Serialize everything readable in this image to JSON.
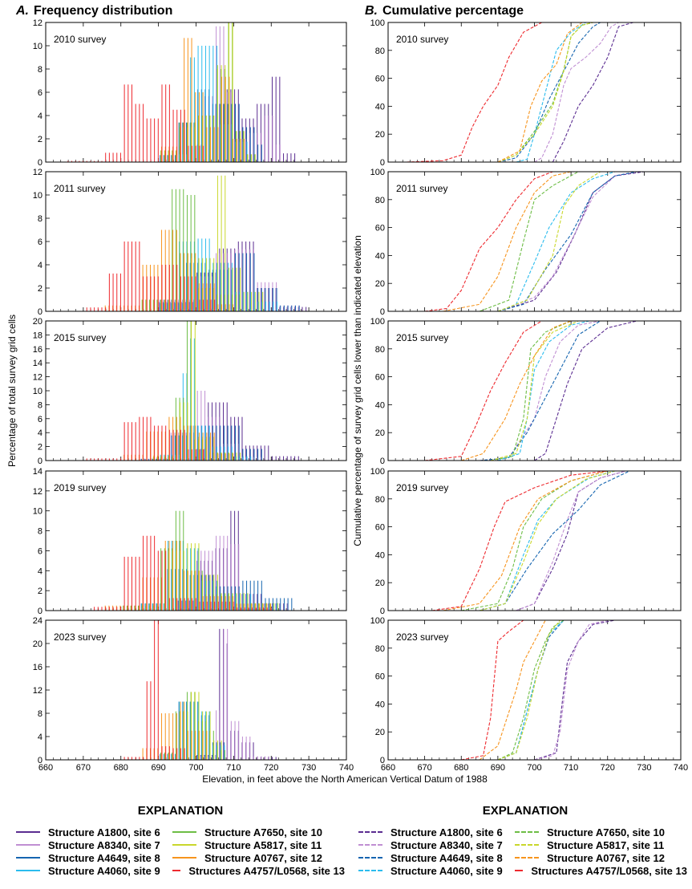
{
  "chart_data": [
    {
      "type": "bar",
      "title": "A.  Frequency distribution",
      "panel_letter": "A.",
      "panel_title": "Frequency distribution",
      "ylabel": "Percentage of total survey grid cells",
      "xlim": [
        660,
        740
      ],
      "xticks": [
        660,
        670,
        680,
        690,
        700,
        710,
        720,
        730,
        740
      ],
      "bin_width_ft": 1,
      "ylims": {
        "2010 survey": 12,
        "2011 survey": 12,
        "2015 survey": 20,
        "2019 survey": 14,
        "2023 survey": 24
      },
      "yticks": {
        "2010 survey": [
          0,
          2,
          4,
          6,
          8,
          10,
          12
        ],
        "2011 survey": [
          0,
          2,
          4,
          6,
          8,
          10,
          12
        ],
        "2015 survey": [
          0,
          2,
          4,
          6,
          8,
          10,
          12,
          14,
          16,
          18,
          20
        ],
        "2019 survey": [
          0,
          2,
          4,
          6,
          8,
          10,
          12,
          14
        ],
        "2023 survey": [
          0,
          4,
          8,
          12,
          16,
          20,
          24
        ]
      }
    },
    {
      "type": "line",
      "title": "B.  Cumulative percentage",
      "panel_letter": "B.",
      "panel_title": "Cumulative percentage",
      "ylabel": "Cumulative percentage of survey grid cells lower than indicated elevation",
      "xlim": [
        660,
        740
      ],
      "ylim": [
        0,
        100
      ],
      "xticks": [
        660,
        670,
        680,
        690,
        700,
        710,
        720,
        730,
        740
      ],
      "yticks": [
        0,
        20,
        40,
        60,
        80,
        100
      ],
      "line_style": "dashed"
    }
  ],
  "xlabel": "Elevation, in feet above the North American Vertical Datum of 1988",
  "legend": {
    "title": "EXPLANATION"
  },
  "series": [
    {
      "name": "Structure A1800, site 6",
      "color": "#5b2d91"
    },
    {
      "name": "Structure A8340, site 7",
      "color": "#c08fd3"
    },
    {
      "name": "Structure A4649, site 8",
      "color": "#1565b0"
    },
    {
      "name": "Structure A4060, site 9",
      "color": "#2bbcee"
    },
    {
      "name": "Structure A7650, site 10",
      "color": "#6dbd45"
    },
    {
      "name": "Structure A5817, site 11",
      "color": "#c9d72b"
    },
    {
      "name": "Structure A0767, site 12",
      "color": "#f7941d"
    },
    {
      "name": "Structures A4757/L0568, site 13",
      "color": "#ee2a2f"
    }
  ],
  "surveys": [
    {
      "label": "2010 survey",
      "cumulative": [
        [
          [
            705,
            0
          ],
          [
            708,
            15
          ],
          [
            712,
            40
          ],
          [
            716,
            55
          ],
          [
            720,
            75
          ],
          [
            723,
            97
          ],
          [
            727,
            100
          ]
        ],
        [
          [
            700,
            0
          ],
          [
            702,
            3
          ],
          [
            705,
            20
          ],
          [
            708,
            55
          ],
          [
            710,
            67
          ],
          [
            714,
            75
          ],
          [
            718,
            85
          ],
          [
            721,
            97
          ],
          [
            723,
            100
          ]
        ],
        [
          [
            690,
            0
          ],
          [
            695,
            3
          ],
          [
            700,
            20
          ],
          [
            704,
            45
          ],
          [
            708,
            65
          ],
          [
            712,
            85
          ],
          [
            716,
            97
          ],
          [
            718,
            100
          ]
        ],
        [
          [
            695,
            0
          ],
          [
            698,
            2
          ],
          [
            700,
            20
          ],
          [
            703,
            50
          ],
          [
            706,
            80
          ],
          [
            710,
            93
          ],
          [
            714,
            100
          ]
        ],
        [
          [
            690,
            0
          ],
          [
            695,
            5
          ],
          [
            700,
            22
          ],
          [
            705,
            42
          ],
          [
            708,
            66
          ],
          [
            710,
            90
          ],
          [
            713,
            98
          ],
          [
            716,
            100
          ]
        ],
        [
          [
            690,
            0
          ],
          [
            695,
            5
          ],
          [
            700,
            20
          ],
          [
            705,
            40
          ],
          [
            708,
            65
          ],
          [
            710,
            90
          ],
          [
            713,
            98
          ],
          [
            716,
            100
          ]
        ],
        [
          [
            690,
            0
          ],
          [
            696,
            8
          ],
          [
            699,
            40
          ],
          [
            702,
            58
          ],
          [
            706,
            70
          ],
          [
            709,
            92
          ],
          [
            713,
            100
          ]
        ],
        [
          [
            665,
            0
          ],
          [
            675,
            1
          ],
          [
            680,
            5
          ],
          [
            683,
            25
          ],
          [
            686,
            40
          ],
          [
            690,
            55
          ],
          [
            693,
            75
          ],
          [
            697,
            93
          ],
          [
            702,
            100
          ]
        ]
      ]
    },
    {
      "label": "2011 survey",
      "cumulative": [
        [
          [
            690,
            0
          ],
          [
            700,
            8
          ],
          [
            706,
            28
          ],
          [
            711,
            55
          ],
          [
            716,
            85
          ],
          [
            722,
            97
          ],
          [
            730,
            100
          ]
        ],
        [
          [
            690,
            0
          ],
          [
            700,
            10
          ],
          [
            705,
            25
          ],
          [
            710,
            50
          ],
          [
            716,
            82
          ],
          [
            722,
            97
          ],
          [
            728,
            100
          ]
        ],
        [
          [
            690,
            0
          ],
          [
            697,
            5
          ],
          [
            703,
            30
          ],
          [
            710,
            55
          ],
          [
            716,
            85
          ],
          [
            722,
            97
          ],
          [
            728,
            100
          ]
        ],
        [
          [
            690,
            0
          ],
          [
            695,
            5
          ],
          [
            700,
            35
          ],
          [
            704,
            60
          ],
          [
            710,
            85
          ],
          [
            716,
            95
          ],
          [
            722,
            100
          ]
        ],
        [
          [
            685,
            0
          ],
          [
            693,
            8
          ],
          [
            697,
            50
          ],
          [
            700,
            80
          ],
          [
            705,
            90
          ],
          [
            712,
            100
          ]
        ],
        [
          [
            690,
            0
          ],
          [
            698,
            8
          ],
          [
            705,
            40
          ],
          [
            708,
            75
          ],
          [
            712,
            90
          ],
          [
            718,
            100
          ]
        ],
        [
          [
            675,
            0
          ],
          [
            685,
            5
          ],
          [
            690,
            25
          ],
          [
            695,
            60
          ],
          [
            700,
            85
          ],
          [
            705,
            97
          ],
          [
            710,
            100
          ]
        ],
        [
          [
            670,
            0
          ],
          [
            676,
            2
          ],
          [
            680,
            15
          ],
          [
            685,
            45
          ],
          [
            690,
            60
          ],
          [
            695,
            80
          ],
          [
            700,
            95
          ],
          [
            705,
            100
          ]
        ]
      ]
    },
    {
      "label": "2015 survey",
      "cumulative": [
        [
          [
            700,
            0
          ],
          [
            703,
            5
          ],
          [
            706,
            30
          ],
          [
            709,
            55
          ],
          [
            713,
            80
          ],
          [
            720,
            95
          ],
          [
            728,
            100
          ]
        ],
        [
          [
            685,
            0
          ],
          [
            693,
            2
          ],
          [
            700,
            30
          ],
          [
            703,
            60
          ],
          [
            707,
            85
          ],
          [
            712,
            97
          ],
          [
            718,
            100
          ]
        ],
        [
          [
            685,
            0
          ],
          [
            693,
            2
          ],
          [
            698,
            20
          ],
          [
            703,
            45
          ],
          [
            708,
            70
          ],
          [
            712,
            90
          ],
          [
            718,
            100
          ]
        ],
        [
          [
            690,
            0
          ],
          [
            696,
            5
          ],
          [
            698,
            30
          ],
          [
            700,
            65
          ],
          [
            704,
            85
          ],
          [
            710,
            97
          ],
          [
            715,
            100
          ]
        ],
        [
          [
            688,
            0
          ],
          [
            694,
            3
          ],
          [
            697,
            30
          ],
          [
            699,
            80
          ],
          [
            703,
            92
          ],
          [
            710,
            100
          ]
        ],
        [
          [
            688,
            0
          ],
          [
            695,
            5
          ],
          [
            698,
            30
          ],
          [
            700,
            75
          ],
          [
            705,
            92
          ],
          [
            712,
            100
          ]
        ],
        [
          [
            680,
            0
          ],
          [
            686,
            5
          ],
          [
            692,
            30
          ],
          [
            696,
            55
          ],
          [
            700,
            75
          ],
          [
            705,
            95
          ],
          [
            710,
            100
          ]
        ],
        [
          [
            670,
            0
          ],
          [
            680,
            3
          ],
          [
            684,
            25
          ],
          [
            688,
            50
          ],
          [
            692,
            70
          ],
          [
            697,
            92
          ],
          [
            702,
            100
          ]
        ]
      ]
    },
    {
      "label": "2019 survey",
      "cumulative": [
        [
          [
            695,
            0
          ],
          [
            700,
            5
          ],
          [
            705,
            30
          ],
          [
            709,
            55
          ],
          [
            712,
            85
          ],
          [
            718,
            95
          ],
          [
            725,
            100
          ]
        ],
        [
          [
            695,
            0
          ],
          [
            700,
            5
          ],
          [
            705,
            35
          ],
          [
            709,
            65
          ],
          [
            712,
            85
          ],
          [
            718,
            95
          ],
          [
            725,
            100
          ]
        ],
        [
          [
            685,
            0
          ],
          [
            692,
            5
          ],
          [
            698,
            30
          ],
          [
            705,
            55
          ],
          [
            712,
            72
          ],
          [
            718,
            90
          ],
          [
            726,
            100
          ]
        ],
        [
          [
            685,
            0
          ],
          [
            692,
            5
          ],
          [
            697,
            40
          ],
          [
            701,
            65
          ],
          [
            706,
            80
          ],
          [
            715,
            95
          ],
          [
            722,
            100
          ]
        ],
        [
          [
            680,
            0
          ],
          [
            690,
            5
          ],
          [
            694,
            30
          ],
          [
            697,
            60
          ],
          [
            702,
            80
          ],
          [
            710,
            93
          ],
          [
            720,
            100
          ]
        ],
        [
          [
            685,
            0
          ],
          [
            692,
            5
          ],
          [
            697,
            35
          ],
          [
            701,
            62
          ],
          [
            706,
            80
          ],
          [
            714,
            94
          ],
          [
            722,
            100
          ]
        ],
        [
          [
            675,
            0
          ],
          [
            685,
            5
          ],
          [
            691,
            25
          ],
          [
            696,
            60
          ],
          [
            701,
            80
          ],
          [
            710,
            93
          ],
          [
            720,
            100
          ]
        ],
        [
          [
            672,
            0
          ],
          [
            680,
            3
          ],
          [
            685,
            30
          ],
          [
            689,
            60
          ],
          [
            692,
            78
          ],
          [
            700,
            88
          ],
          [
            710,
            97
          ],
          [
            720,
            100
          ]
        ]
      ]
    },
    {
      "label": "2023 survey",
      "cumulative": [
        [
          [
            700,
            0
          ],
          [
            706,
            5
          ],
          [
            708,
            50
          ],
          [
            709,
            70
          ],
          [
            712,
            85
          ],
          [
            716,
            97
          ],
          [
            722,
            100
          ]
        ],
        [
          [
            700,
            0
          ],
          [
            705,
            3
          ],
          [
            707,
            20
          ],
          [
            709,
            65
          ],
          [
            712,
            85
          ],
          [
            715,
            97
          ],
          [
            720,
            100
          ]
        ],
        [
          [
            690,
            0
          ],
          [
            695,
            5
          ],
          [
            698,
            35
          ],
          [
            701,
            65
          ],
          [
            704,
            88
          ],
          [
            708,
            100
          ]
        ],
        [
          [
            690,
            0
          ],
          [
            695,
            5
          ],
          [
            698,
            35
          ],
          [
            701,
            65
          ],
          [
            704,
            90
          ],
          [
            708,
            100
          ]
        ],
        [
          [
            690,
            0
          ],
          [
            694,
            5
          ],
          [
            697,
            30
          ],
          [
            700,
            65
          ],
          [
            703,
            85
          ],
          [
            705,
            95
          ],
          [
            708,
            100
          ]
        ],
        [
          [
            690,
            0
          ],
          [
            695,
            5
          ],
          [
            698,
            30
          ],
          [
            701,
            65
          ],
          [
            704,
            90
          ],
          [
            707,
            100
          ]
        ],
        [
          [
            685,
            0
          ],
          [
            690,
            10
          ],
          [
            695,
            50
          ],
          [
            697,
            70
          ],
          [
            700,
            85
          ],
          [
            703,
            100
          ]
        ],
        [
          [
            680,
            0
          ],
          [
            686,
            3
          ],
          [
            688,
            30
          ],
          [
            690,
            85
          ],
          [
            693,
            92
          ],
          [
            697,
            100
          ]
        ]
      ]
    }
  ]
}
